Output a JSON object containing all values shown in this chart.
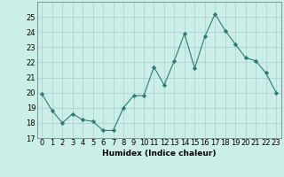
{
  "title": "",
  "xlabel": "Humidex (Indice chaleur)",
  "ylabel": "",
  "x_values": [
    0,
    1,
    2,
    3,
    4,
    5,
    6,
    7,
    8,
    9,
    10,
    11,
    12,
    13,
    14,
    15,
    16,
    17,
    18,
    19,
    20,
    21,
    22,
    23
  ],
  "y_values": [
    19.9,
    18.8,
    18.0,
    18.6,
    18.2,
    18.1,
    17.5,
    17.5,
    19.0,
    19.8,
    19.8,
    21.7,
    20.5,
    22.1,
    23.9,
    21.6,
    23.7,
    25.2,
    24.1,
    23.2,
    22.3,
    22.1,
    21.3,
    20.0
  ],
  "line_color": "#2a7d6e",
  "marker": "D",
  "marker_size": 2.2,
  "ylim": [
    17,
    26
  ],
  "yticks": [
    17,
    18,
    19,
    20,
    21,
    22,
    23,
    24,
    25
  ],
  "background_color": "#cceee8",
  "grid_color": "#aacccc",
  "axis_fontsize": 6.5,
  "tick_fontsize": 6.0
}
